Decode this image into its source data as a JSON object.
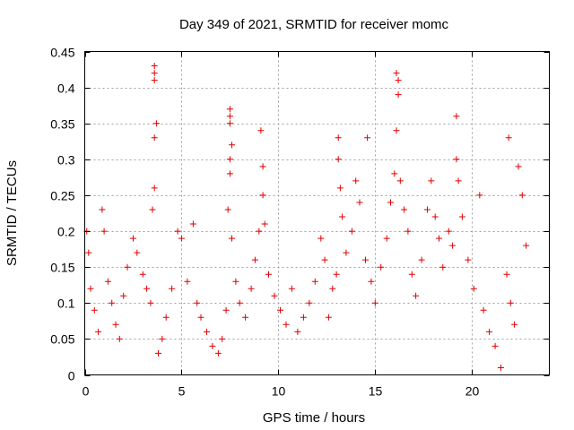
{
  "chart_data": {
    "type": "scatter",
    "title": "Day 349 of 2021, SRMTID for receiver momc",
    "xlabel": "GPS time / hours",
    "ylabel": "SRMTID / TECUs",
    "xlim": [
      0,
      24
    ],
    "ylim": [
      0,
      0.45
    ],
    "xticks": [
      0,
      5,
      10,
      15,
      20
    ],
    "xtick_labels": [
      "0",
      "5",
      "10",
      "15",
      "20"
    ],
    "yticks": [
      0,
      0.05,
      0.1,
      0.15,
      0.2,
      0.25,
      0.3,
      0.35,
      0.4,
      0.45
    ],
    "ytick_labels": [
      "0",
      "0.05",
      "0.1",
      "0.15",
      "0.2",
      "0.25",
      "0.3",
      "0.35",
      "0.4",
      "0.45"
    ],
    "grid": true,
    "marker": "+",
    "color": "#e00000",
    "series": [
      {
        "name": "SRMTID",
        "points": [
          [
            0.1,
            0.2
          ],
          [
            0.2,
            0.17
          ],
          [
            0.3,
            0.12
          ],
          [
            0.5,
            0.09
          ],
          [
            0.7,
            0.06
          ],
          [
            0.9,
            0.23
          ],
          [
            1.0,
            0.2
          ],
          [
            1.2,
            0.13
          ],
          [
            1.4,
            0.1
          ],
          [
            1.6,
            0.07
          ],
          [
            1.8,
            0.05
          ],
          [
            2.0,
            0.11
          ],
          [
            2.2,
            0.15
          ],
          [
            2.5,
            0.19
          ],
          [
            2.7,
            0.17
          ],
          [
            3.0,
            0.14
          ],
          [
            3.2,
            0.12
          ],
          [
            3.4,
            0.1
          ],
          [
            3.6,
            0.43
          ],
          [
            3.6,
            0.42
          ],
          [
            3.6,
            0.41
          ],
          [
            3.7,
            0.35
          ],
          [
            3.6,
            0.33
          ],
          [
            3.6,
            0.26
          ],
          [
            3.5,
            0.23
          ],
          [
            3.8,
            0.03
          ],
          [
            4.0,
            0.05
          ],
          [
            4.2,
            0.08
          ],
          [
            4.5,
            0.12
          ],
          [
            4.8,
            0.2
          ],
          [
            5.0,
            0.19
          ],
          [
            5.3,
            0.13
          ],
          [
            5.6,
            0.21
          ],
          [
            5.8,
            0.1
          ],
          [
            6.0,
            0.08
          ],
          [
            6.3,
            0.06
          ],
          [
            6.6,
            0.04
          ],
          [
            6.9,
            0.03
          ],
          [
            7.1,
            0.05
          ],
          [
            7.3,
            0.09
          ],
          [
            7.5,
            0.37
          ],
          [
            7.5,
            0.36
          ],
          [
            7.5,
            0.35
          ],
          [
            7.6,
            0.32
          ],
          [
            7.5,
            0.3
          ],
          [
            7.5,
            0.28
          ],
          [
            7.4,
            0.23
          ],
          [
            7.6,
            0.19
          ],
          [
            7.8,
            0.13
          ],
          [
            8.0,
            0.1
          ],
          [
            8.3,
            0.08
          ],
          [
            8.6,
            0.12
          ],
          [
            8.8,
            0.16
          ],
          [
            9.0,
            0.2
          ],
          [
            9.1,
            0.34
          ],
          [
            9.2,
            0.29
          ],
          [
            9.2,
            0.25
          ],
          [
            9.3,
            0.21
          ],
          [
            9.5,
            0.14
          ],
          [
            9.8,
            0.11
          ],
          [
            10.1,
            0.09
          ],
          [
            10.4,
            0.07
          ],
          [
            10.7,
            0.12
          ],
          [
            11.0,
            0.06
          ],
          [
            11.3,
            0.08
          ],
          [
            11.6,
            0.1
          ],
          [
            11.9,
            0.13
          ],
          [
            12.2,
            0.19
          ],
          [
            12.4,
            0.16
          ],
          [
            12.6,
            0.08
          ],
          [
            12.8,
            0.12
          ],
          [
            13.0,
            0.14
          ],
          [
            13.1,
            0.33
          ],
          [
            13.1,
            0.3
          ],
          [
            13.2,
            0.26
          ],
          [
            13.3,
            0.22
          ],
          [
            13.5,
            0.17
          ],
          [
            13.8,
            0.2
          ],
          [
            14.0,
            0.27
          ],
          [
            14.2,
            0.24
          ],
          [
            14.5,
            0.16
          ],
          [
            14.6,
            0.33
          ],
          [
            14.8,
            0.13
          ],
          [
            15.0,
            0.1
          ],
          [
            15.3,
            0.15
          ],
          [
            15.6,
            0.19
          ],
          [
            15.8,
            0.24
          ],
          [
            16.0,
            0.28
          ],
          [
            16.1,
            0.42
          ],
          [
            16.2,
            0.41
          ],
          [
            16.2,
            0.39
          ],
          [
            16.1,
            0.34
          ],
          [
            16.3,
            0.27
          ],
          [
            16.5,
            0.23
          ],
          [
            16.7,
            0.2
          ],
          [
            16.9,
            0.14
          ],
          [
            17.1,
            0.11
          ],
          [
            17.4,
            0.16
          ],
          [
            17.7,
            0.23
          ],
          [
            17.9,
            0.27
          ],
          [
            18.1,
            0.22
          ],
          [
            18.3,
            0.19
          ],
          [
            18.5,
            0.15
          ],
          [
            18.8,
            0.2
          ],
          [
            19.0,
            0.18
          ],
          [
            19.2,
            0.36
          ],
          [
            19.2,
            0.3
          ],
          [
            19.3,
            0.27
          ],
          [
            19.5,
            0.22
          ],
          [
            19.8,
            0.16
          ],
          [
            20.1,
            0.12
          ],
          [
            20.4,
            0.25
          ],
          [
            20.6,
            0.09
          ],
          [
            20.9,
            0.06
          ],
          [
            21.2,
            0.04
          ],
          [
            21.5,
            0.01
          ],
          [
            21.8,
            0.14
          ],
          [
            21.9,
            0.33
          ],
          [
            22.0,
            0.1
          ],
          [
            22.2,
            0.07
          ],
          [
            22.4,
            0.29
          ],
          [
            22.6,
            0.25
          ],
          [
            22.8,
            0.18
          ]
        ]
      }
    ]
  }
}
